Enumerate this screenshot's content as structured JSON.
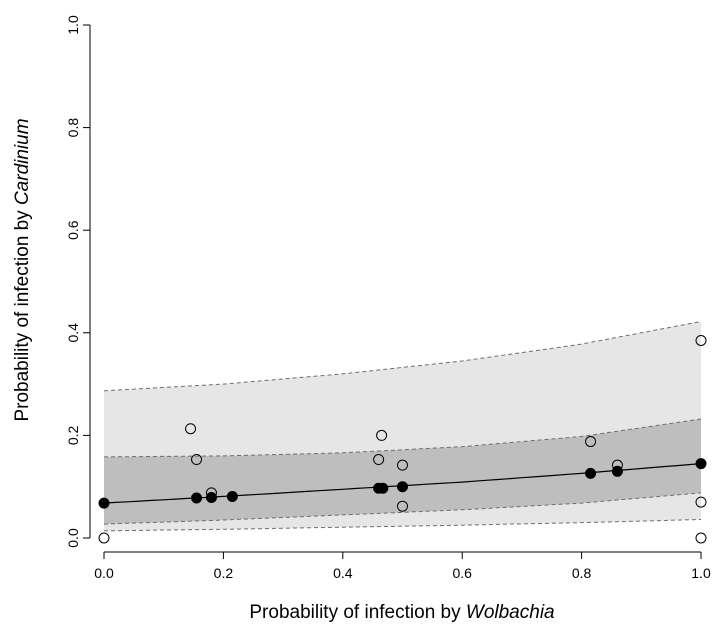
{
  "chart_data": {
    "type": "scatter",
    "xlabel": {
      "prefix": "Probability of infection by ",
      "italic": "Wolbachia"
    },
    "ylabel": {
      "prefix": "Probability of infection by ",
      "italic": "Cardinium"
    },
    "xlim": [
      0,
      1
    ],
    "ylim": [
      0,
      1
    ],
    "xticks": [
      "0.0",
      "0.2",
      "0.4",
      "0.6",
      "0.8",
      "1.0"
    ],
    "yticks": [
      "0.0",
      "0.2",
      "0.4",
      "0.6",
      "0.8",
      "1.0"
    ],
    "grid": false,
    "bands": {
      "outer": {
        "x": [
          0,
          0.2,
          0.4,
          0.6,
          0.8,
          1.0
        ],
        "lower": [
          0.014,
          0.017,
          0.021,
          0.025,
          0.03,
          0.036
        ],
        "upper": [
          0.287,
          0.3,
          0.32,
          0.345,
          0.378,
          0.422
        ],
        "color": "#e6e6e6"
      },
      "inner": {
        "x": [
          0,
          0.2,
          0.4,
          0.6,
          0.8,
          1.0
        ],
        "lower": [
          0.027,
          0.035,
          0.045,
          0.055,
          0.068,
          0.088
        ],
        "upper": [
          0.158,
          0.16,
          0.166,
          0.178,
          0.198,
          0.232
        ],
        "color": "#bebebe"
      }
    },
    "fit_line": {
      "x": [
        0,
        0.2,
        0.4,
        0.6,
        0.8,
        1.0
      ],
      "y": [
        0.068,
        0.081,
        0.095,
        0.109,
        0.126,
        0.145
      ]
    },
    "series": [
      {
        "marker": "open-circle",
        "points": [
          [
            0.0,
            0.0
          ],
          [
            0.145,
            0.213
          ],
          [
            0.155,
            0.153
          ],
          [
            0.18,
            0.088
          ],
          [
            0.46,
            0.153
          ],
          [
            0.465,
            0.2
          ],
          [
            0.5,
            0.142
          ],
          [
            0.5,
            0.062
          ],
          [
            0.815,
            0.188
          ],
          [
            0.86,
            0.142
          ],
          [
            1.0,
            0.385
          ],
          [
            1.0,
            0.07
          ],
          [
            1.0,
            0.0
          ]
        ]
      },
      {
        "marker": "filled-circle",
        "points": [
          [
            0.0,
            0.068
          ],
          [
            0.155,
            0.078
          ],
          [
            0.18,
            0.079
          ],
          [
            0.215,
            0.081
          ],
          [
            0.46,
            0.097
          ],
          [
            0.467,
            0.097
          ],
          [
            0.5,
            0.1
          ],
          [
            0.815,
            0.126
          ],
          [
            0.86,
            0.13
          ],
          [
            1.0,
            0.145
          ]
        ]
      }
    ]
  }
}
